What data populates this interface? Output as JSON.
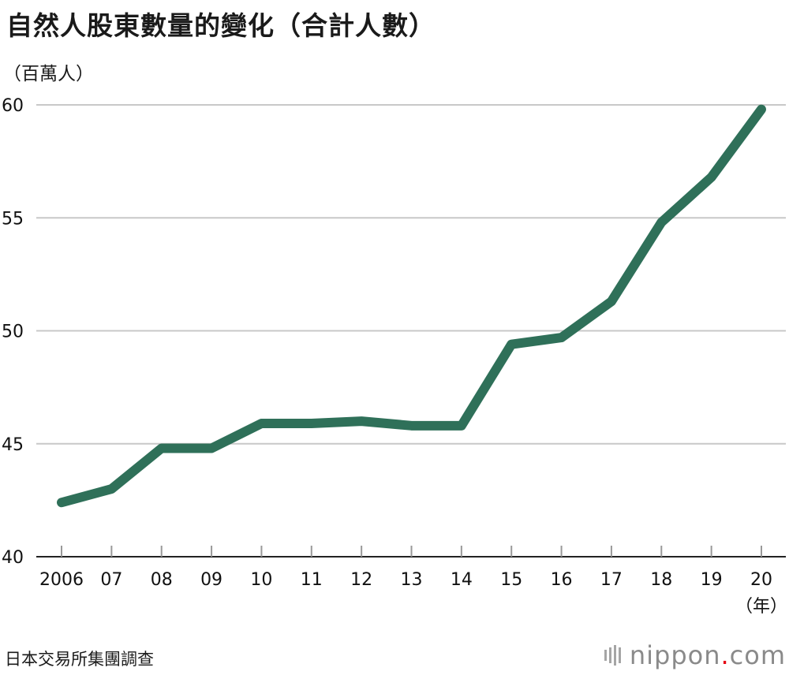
{
  "header": {
    "title": "自然人股東數量的變化（合計人數）",
    "unit_label": "（百萬人）"
  },
  "footer": {
    "source": "日本交易所集團調查",
    "brand_name": "nippon",
    "brand_dot": ".",
    "brand_tld": "com"
  },
  "chart_data": {
    "type": "line",
    "title": "自然人股東數量的變化（合計人數）",
    "ylabel": "（百萬人）",
    "xlabel": "（年）",
    "categories": [
      "2006",
      "07",
      "08",
      "09",
      "10",
      "11",
      "12",
      "13",
      "14",
      "15",
      "16",
      "17",
      "18",
      "19",
      "20"
    ],
    "series": [
      {
        "values": [
          42.4,
          43.0,
          44.8,
          44.8,
          45.9,
          45.9,
          46.0,
          45.8,
          45.8,
          49.4,
          49.7,
          51.3,
          54.8,
          56.8,
          59.8
        ]
      }
    ],
    "ylim": [
      40,
      60
    ],
    "yticks": [
      40,
      45,
      50,
      55,
      60
    ],
    "grid": true,
    "legend": "none",
    "colors": {
      "line": "#2f7059",
      "grid": "#c8c8c8",
      "axis": "#222222"
    }
  }
}
